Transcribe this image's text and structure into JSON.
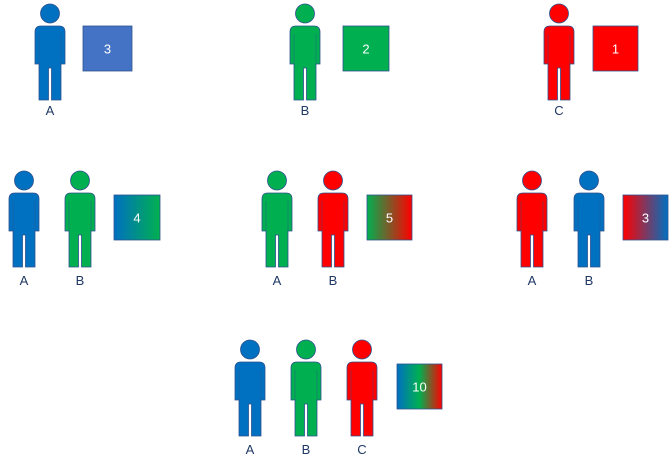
{
  "colors": {
    "blue": "#0070C0",
    "green": "#00B050",
    "red": "#FF0000",
    "box_blue": "#4472C4",
    "label": "#1F3864"
  },
  "icons": {
    "person": "person-icon",
    "box": "score-box"
  },
  "groups": [
    {
      "members": [
        {
          "label": "A",
          "color": "blue"
        }
      ],
      "box": {
        "value": "3",
        "colors": [
          "box_blue"
        ]
      }
    },
    {
      "members": [
        {
          "label": "B",
          "color": "green"
        }
      ],
      "box": {
        "value": "2",
        "colors": [
          "green"
        ]
      }
    },
    {
      "members": [
        {
          "label": "C",
          "color": "red"
        }
      ],
      "box": {
        "value": "1",
        "colors": [
          "red"
        ]
      }
    },
    {
      "members": [
        {
          "label": "A",
          "color": "blue"
        },
        {
          "label": "B",
          "color": "green"
        }
      ],
      "box": {
        "value": "4",
        "colors": [
          "blue",
          "green"
        ]
      }
    },
    {
      "members": [
        {
          "label": "A",
          "color": "green"
        },
        {
          "label": "B",
          "color": "red"
        }
      ],
      "box": {
        "value": "5",
        "colors": [
          "green",
          "red"
        ]
      }
    },
    {
      "members": [
        {
          "label": "A",
          "color": "red"
        },
        {
          "label": "B",
          "color": "blue"
        }
      ],
      "box": {
        "value": "3",
        "colors": [
          "red",
          "blue"
        ]
      }
    },
    {
      "members": [
        {
          "label": "A",
          "color": "blue"
        },
        {
          "label": "B",
          "color": "green"
        },
        {
          "label": "C",
          "color": "red"
        }
      ],
      "box": {
        "value": "10",
        "colors": [
          "blue",
          "green",
          "red"
        ]
      }
    }
  ]
}
